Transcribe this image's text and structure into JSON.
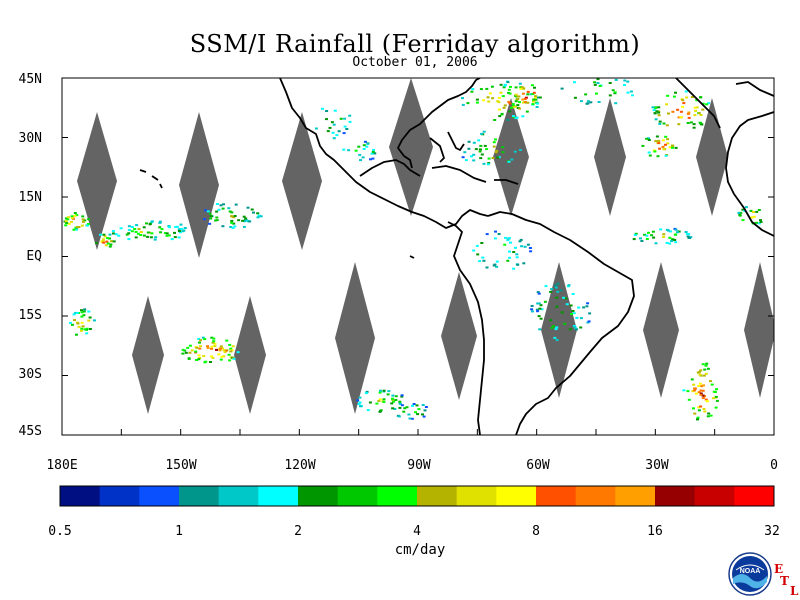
{
  "title": "SSM/I Rainfall (Ferriday algorithm)",
  "date": "October 01, 2006",
  "latitude_labels": [
    "45N",
    "30N",
    "15N",
    "EQ",
    "15S",
    "30S",
    "45S"
  ],
  "longitude_labels": [
    "180E",
    "150W",
    "120W",
    "90W",
    "60W",
    "30W",
    "0"
  ],
  "colorbar": {
    "colors": [
      "#000f82",
      "#0032c8",
      "#0a50ff",
      "#00968c",
      "#00c8c8",
      "#00ffff",
      "#009600",
      "#00c800",
      "#00ff00",
      "#b4b400",
      "#e1e100",
      "#ffff00",
      "#ff5000",
      "#ff7800",
      "#ffa000",
      "#960000",
      "#c80000",
      "#ff0000"
    ],
    "tick_labels": [
      "0.5",
      "1",
      "2",
      "4",
      "8",
      "16",
      "32"
    ],
    "unit": "cm/day"
  },
  "logo": {
    "text": "NOAA",
    "etl_letters": [
      "E",
      "T",
      "L"
    ]
  },
  "colors": {
    "coastline": "#000000",
    "data_gap": "#646464"
  }
}
